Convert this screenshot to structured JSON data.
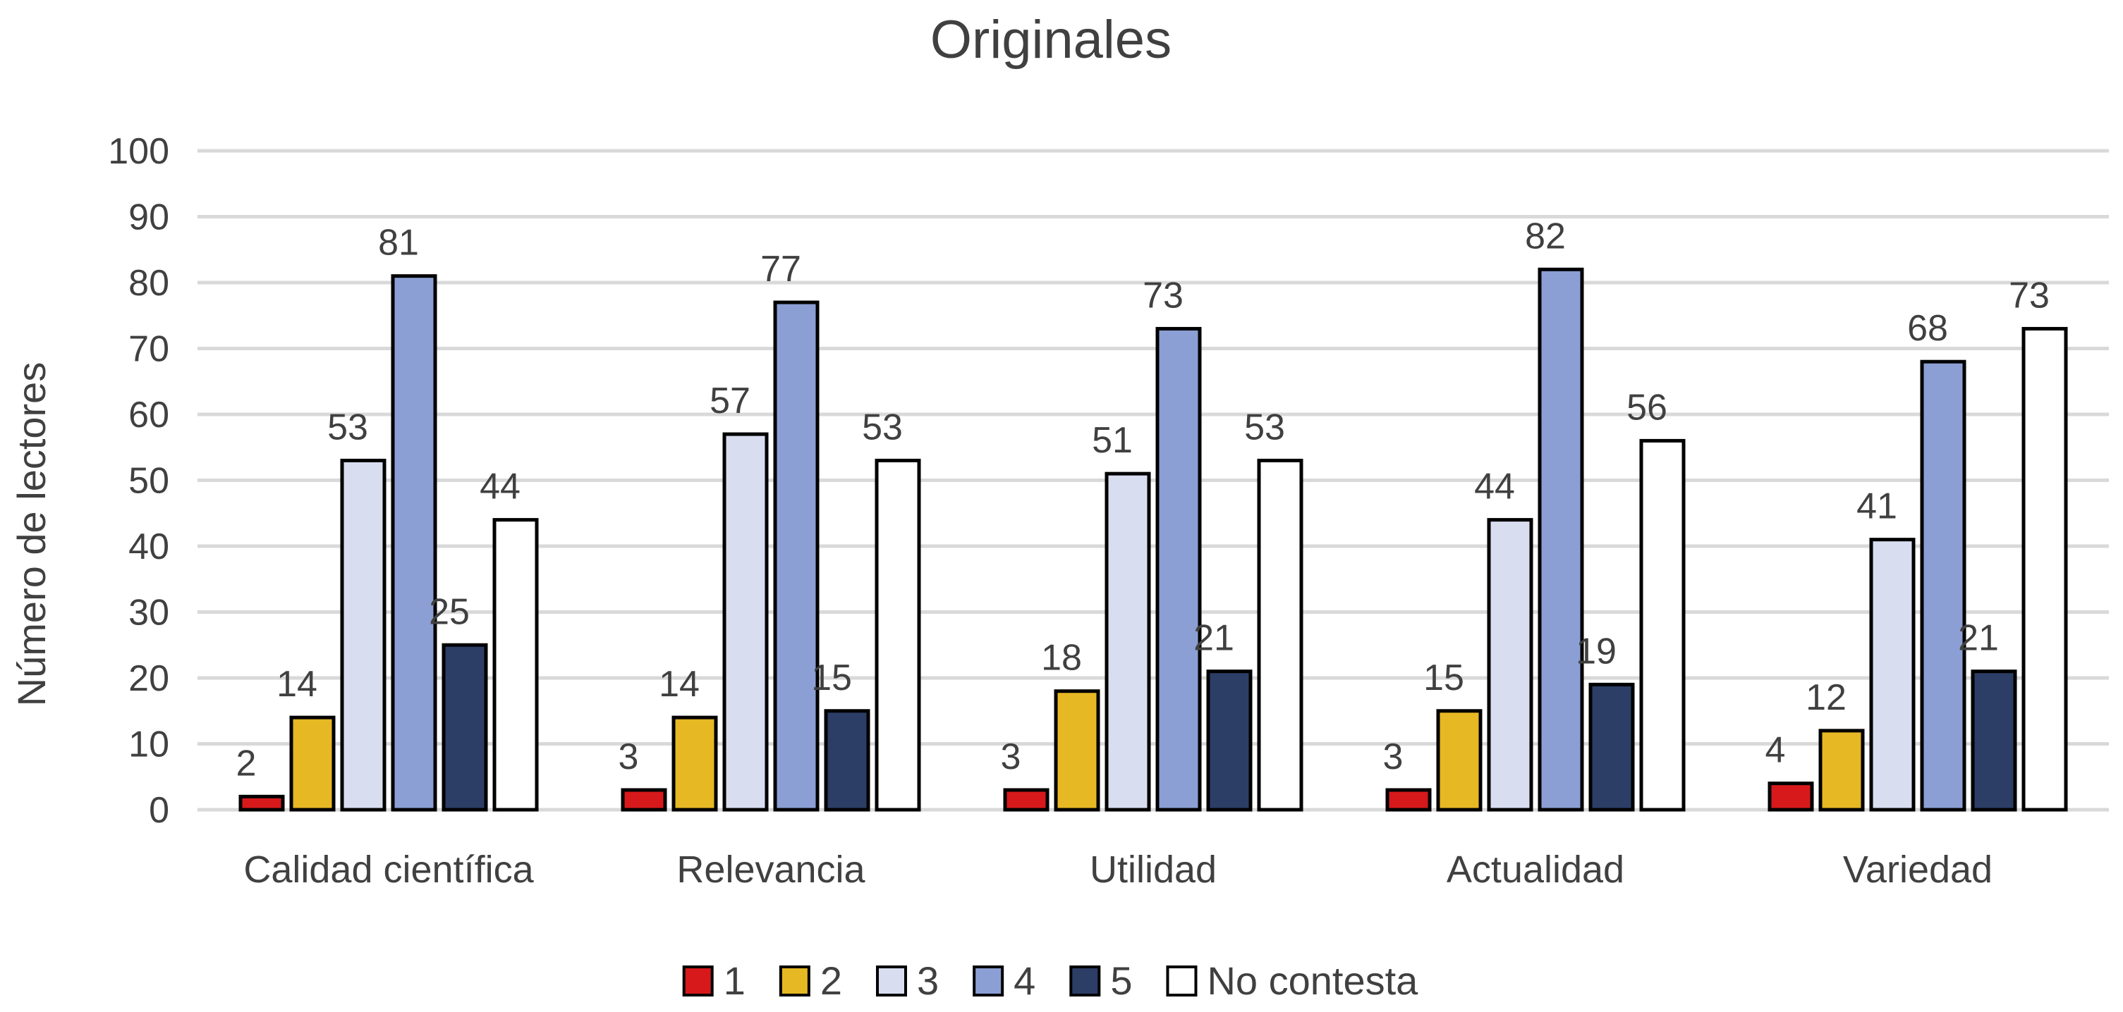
{
  "chart_data": {
    "type": "bar",
    "title": "Originales",
    "ylabel": "Número de lectores",
    "xlabel": "",
    "ylim": [
      0,
      100
    ],
    "yticks": [
      0,
      10,
      20,
      30,
      40,
      50,
      60,
      70,
      80,
      90,
      100
    ],
    "grid": true,
    "legend_position": "bottom",
    "categories": [
      "Calidad científica",
      "Relevancia",
      "Utilidad",
      "Actualidad",
      "Variedad"
    ],
    "series": [
      {
        "name": "1",
        "color": "#d7191c",
        "values": [
          2,
          3,
          3,
          3,
          4
        ]
      },
      {
        "name": "2",
        "color": "#e6b823",
        "values": [
          14,
          14,
          18,
          15,
          12
        ]
      },
      {
        "name": "3",
        "color": "#d9ddf0",
        "values": [
          53,
          57,
          51,
          44,
          41
        ]
      },
      {
        "name": "4",
        "color": "#8b9fd4",
        "values": [
          81,
          77,
          73,
          82,
          68
        ]
      },
      {
        "name": "5",
        "color": "#2c3e66",
        "values": [
          25,
          15,
          21,
          19,
          21
        ]
      },
      {
        "name": "No contesta",
        "color": "#ffffff",
        "values": [
          44,
          53,
          53,
          56,
          73
        ]
      }
    ]
  }
}
